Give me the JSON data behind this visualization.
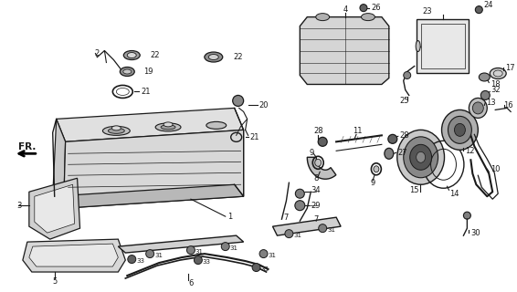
{
  "bg_color": "#ffffff",
  "fig_width": 5.66,
  "fig_height": 3.2,
  "dpi": 100,
  "lc": "#1a1a1a",
  "fs": 6.0
}
